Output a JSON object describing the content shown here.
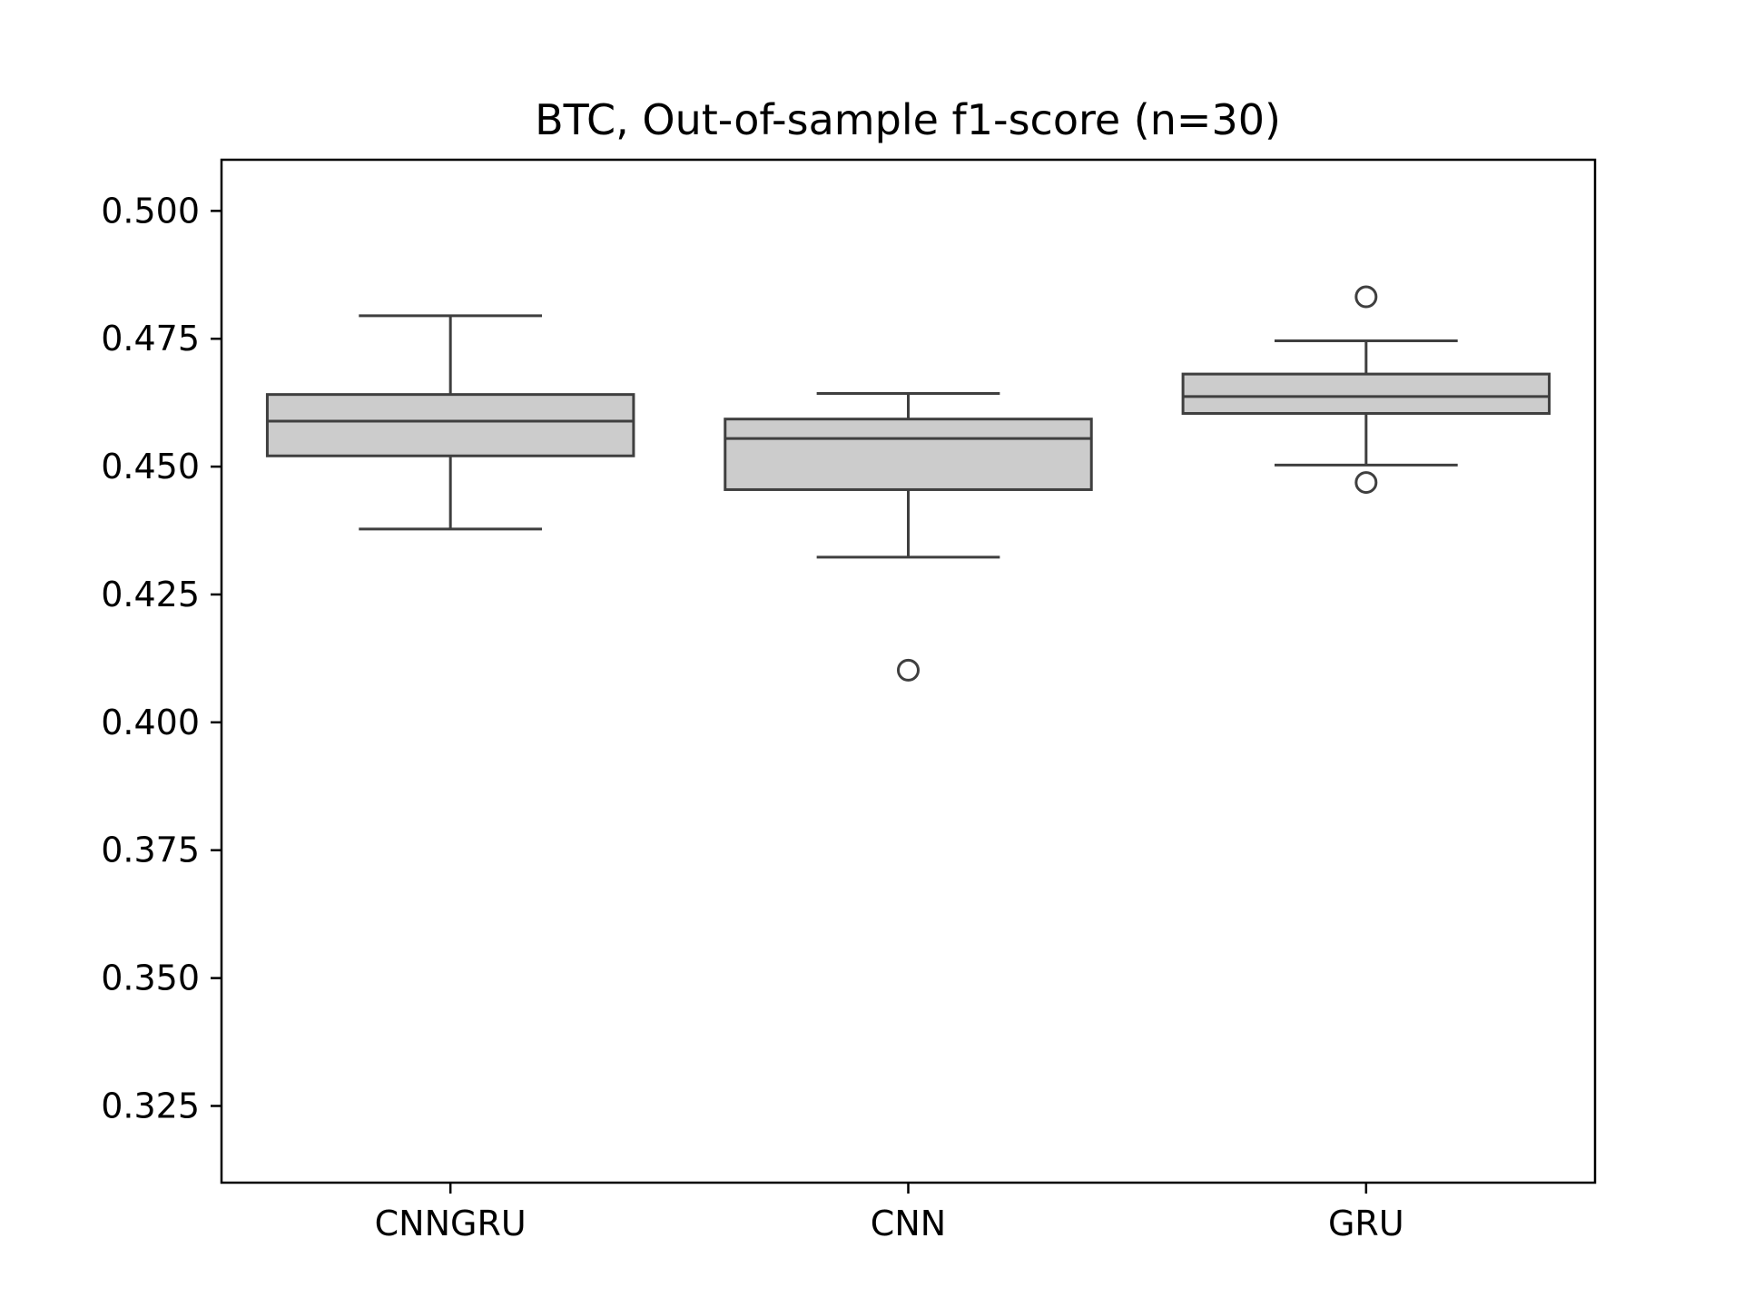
{
  "chart_data": {
    "type": "box",
    "title": "BTC, Out-of-sample f1-score (n=30)",
    "xlabel": "",
    "ylabel": "",
    "ylim": [
      0.31,
      0.51
    ],
    "yticks": [
      0.325,
      0.35,
      0.375,
      0.4,
      0.425,
      0.45,
      0.475,
      0.5
    ],
    "ytick_labels": [
      "0.325",
      "0.350",
      "0.375",
      "0.400",
      "0.425",
      "0.450",
      "0.475",
      "0.500"
    ],
    "grid": false,
    "legend": "none",
    "categories": [
      "CNNGRU",
      "CNN",
      "GRU"
    ],
    "boxes": [
      {
        "category": "CNNGRU",
        "whisker_low": 0.4378,
        "q1": 0.4521,
        "median": 0.4589,
        "q3": 0.4641,
        "whisker_high": 0.4795,
        "outliers": []
      },
      {
        "category": "CNN",
        "whisker_low": 0.4323,
        "q1": 0.4455,
        "median": 0.4555,
        "q3": 0.4593,
        "whisker_high": 0.4643,
        "outliers": [
          0.4102
        ]
      },
      {
        "category": "GRU",
        "whisker_low": 0.4503,
        "q1": 0.4604,
        "median": 0.4637,
        "q3": 0.4681,
        "whisker_high": 0.4746,
        "outliers": [
          0.4832,
          0.4469
        ]
      }
    ],
    "colors": {
      "box_fill": "#cccccc",
      "line": "#3f3f3f",
      "axes": "#000000"
    }
  }
}
